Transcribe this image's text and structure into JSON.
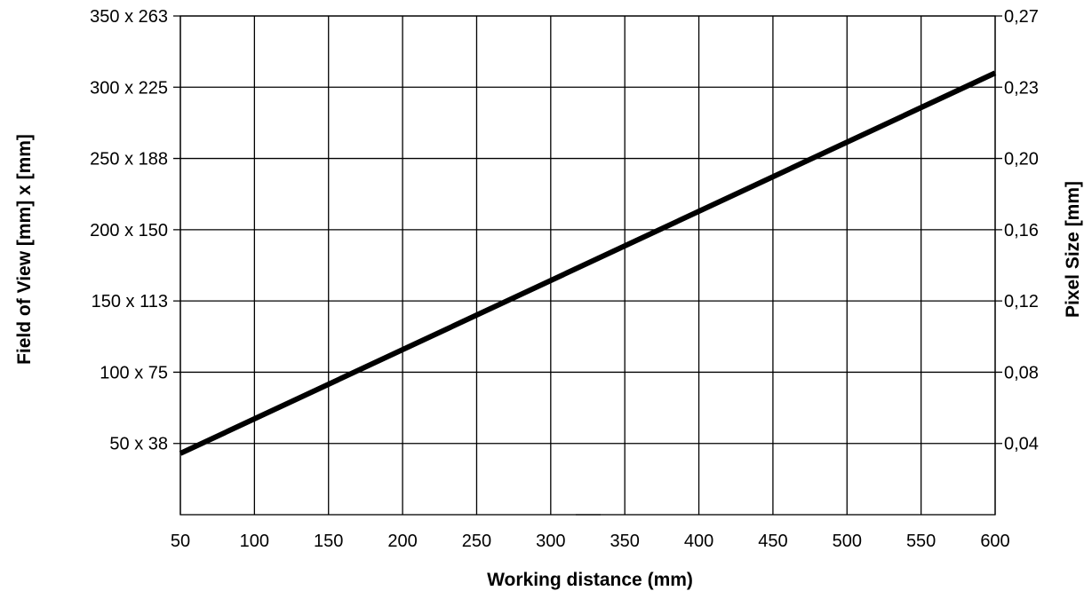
{
  "chart_data": {
    "type": "line",
    "xlabel": "Working distance (mm)",
    "ylabel_left": "Field of View [mm] x [mm]",
    "ylabel_right": "Pixel Size  [mm]",
    "xlim": [
      50,
      600
    ],
    "ylim": [
      0,
      350
    ],
    "x_ticks": [
      50,
      100,
      150,
      200,
      250,
      300,
      350,
      400,
      450,
      500,
      550,
      600
    ],
    "left_ticks": [
      {
        "value": 50,
        "label": "50 x 38"
      },
      {
        "value": 100,
        "label": "100 x 75"
      },
      {
        "value": 150,
        "label": "150 x 113"
      },
      {
        "value": 200,
        "label": "200 x 150"
      },
      {
        "value": 250,
        "label": "250 x 188"
      },
      {
        "value": 300,
        "label": "300 x 225"
      },
      {
        "value": 350,
        "label": "350 x 263"
      }
    ],
    "right_ticks": [
      {
        "value": 50,
        "label": "0,04"
      },
      {
        "value": 100,
        "label": "0,08"
      },
      {
        "value": 150,
        "label": "0,12"
      },
      {
        "value": 200,
        "label": "0,16"
      },
      {
        "value": 250,
        "label": "0,20"
      },
      {
        "value": 300,
        "label": "0,23"
      },
      {
        "value": 350,
        "label": "0,27"
      }
    ],
    "grid": true,
    "series": [
      {
        "x": [
          50,
          600
        ],
        "y": [
          43,
          310
        ],
        "color": "#000000"
      }
    ]
  }
}
